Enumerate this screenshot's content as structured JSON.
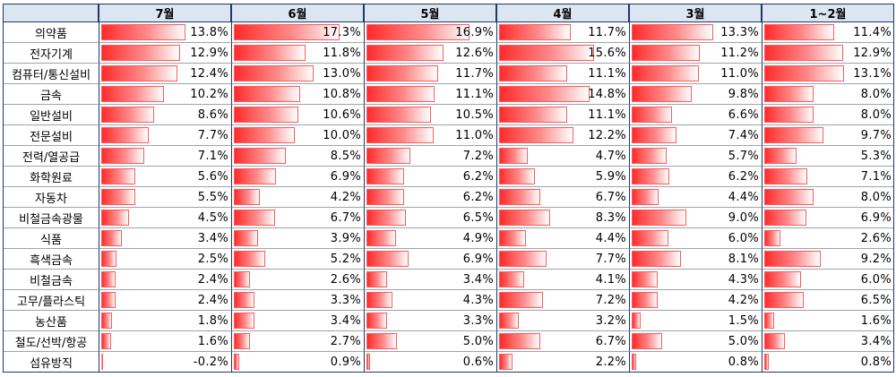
{
  "chart_data": {
    "type": "table",
    "columns": [
      "7월",
      "6월",
      "5월",
      "4월",
      "3월",
      "1~2월"
    ],
    "categories": [
      "의약품",
      "전자기계",
      "컴퓨터/통신설비",
      "금속",
      "일반설비",
      "전문설비",
      "전력/열공급",
      "화학원료",
      "자동차",
      "비철금속광물",
      "식품",
      "흑색금속",
      "비철금속",
      "고무/플라스틱",
      "농산품",
      "철도/선박/항공",
      "섬유방직"
    ],
    "series": [
      {
        "name": "7월",
        "values": [
          13.8,
          12.9,
          12.4,
          10.2,
          8.6,
          7.7,
          7.1,
          5.6,
          5.5,
          4.5,
          3.4,
          2.5,
          2.4,
          2.4,
          1.8,
          1.6,
          -0.2
        ]
      },
      {
        "name": "6월",
        "values": [
          17.3,
          11.8,
          13.0,
          10.8,
          10.6,
          10.0,
          8.5,
          6.9,
          4.2,
          6.7,
          3.9,
          5.2,
          2.6,
          3.3,
          3.4,
          2.7,
          0.9
        ]
      },
      {
        "name": "5월",
        "values": [
          16.9,
          12.6,
          11.7,
          11.1,
          10.5,
          11.0,
          7.2,
          6.2,
          6.2,
          6.5,
          4.9,
          6.9,
          3.4,
          4.3,
          3.3,
          5.0,
          0.6
        ]
      },
      {
        "name": "4월",
        "values": [
          11.7,
          15.6,
          11.1,
          14.8,
          11.1,
          12.2,
          4.7,
          5.9,
          6.7,
          8.3,
          4.4,
          7.7,
          4.1,
          7.2,
          3.2,
          6.7,
          2.2
        ]
      },
      {
        "name": "3월",
        "values": [
          13.3,
          11.2,
          11.0,
          9.8,
          6.6,
          7.4,
          5.7,
          6.2,
          4.4,
          9.0,
          6.0,
          8.1,
          4.3,
          4.2,
          1.5,
          5.0,
          0.8
        ]
      },
      {
        "name": "1~2월",
        "values": [
          11.4,
          12.9,
          13.1,
          8.0,
          8.0,
          9.7,
          5.3,
          7.1,
          8.0,
          6.9,
          2.6,
          9.2,
          6.0,
          6.5,
          1.6,
          3.4,
          0.8
        ]
      }
    ],
    "value_suffix": "%",
    "bar_max": 17.3,
    "bar_color": "#ff3333",
    "header_fill": "#dce6f1",
    "border_color": "#1f3864"
  }
}
